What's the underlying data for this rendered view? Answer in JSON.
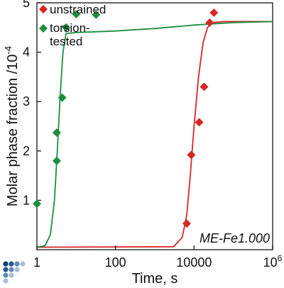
{
  "chart_data": {
    "type": "scatter",
    "title": "",
    "xlabel": "Time, s",
    "ylabel": "Molar phase fraction /10",
    "ylabel_exponent": "-4",
    "x_scale": "log",
    "xlim": [
      1,
      1000000
    ],
    "ylim": [
      0,
      5
    ],
    "x_ticks": [
      {
        "value": 1,
        "label": "1"
      },
      {
        "value": 100,
        "label": "100"
      },
      {
        "value": 10000,
        "label": "10000"
      },
      {
        "value": 1000000,
        "label": "10",
        "exponent": "6"
      }
    ],
    "y_ticks": [
      {
        "value": 1,
        "label": "1"
      },
      {
        "value": 2,
        "label": "2"
      },
      {
        "value": 3,
        "label": "3"
      },
      {
        "value": 4,
        "label": "4"
      },
      {
        "value": 5,
        "label": "5"
      }
    ],
    "legend_position": "top-left",
    "grid": false,
    "annotation": "ME-Fe1.000",
    "series": [
      {
        "name": "unstrained",
        "color": "#d62728",
        "marker": "diamond",
        "points": [
          {
            "x": 6500,
            "y": 0.53
          },
          {
            "x": 8500,
            "y": 1.92
          },
          {
            "x": 13500,
            "y": 2.58
          },
          {
            "x": 18000,
            "y": 3.3
          },
          {
            "x": 25000,
            "y": 4.6
          },
          {
            "x": 32000,
            "y": 4.8
          }
        ],
        "fit_curve": [
          {
            "x": 1,
            "y": 0.05
          },
          {
            "x": 3000,
            "y": 0.06
          },
          {
            "x": 5000,
            "y": 0.25
          },
          {
            "x": 6500,
            "y": 0.7
          },
          {
            "x": 8000,
            "y": 1.5
          },
          {
            "x": 10000,
            "y": 2.5
          },
          {
            "x": 13000,
            "y": 3.5
          },
          {
            "x": 17000,
            "y": 4.2
          },
          {
            "x": 22000,
            "y": 4.5
          },
          {
            "x": 30000,
            "y": 4.6
          },
          {
            "x": 60000,
            "y": 4.62
          },
          {
            "x": 1000000,
            "y": 4.62
          }
        ]
      },
      {
        "name": "torsion-tested",
        "color": "#1e8e3e",
        "marker": "diamond",
        "points": [
          {
            "x": 1,
            "y": 0.93
          },
          {
            "x": 3.2,
            "y": 1.8
          },
          {
            "x": 3.2,
            "y": 2.37
          },
          {
            "x": 4.4,
            "y": 3.08
          },
          {
            "x": 5.5,
            "y": 4.5
          },
          {
            "x": 10,
            "y": 4.77
          },
          {
            "x": 32,
            "y": 4.76
          }
        ],
        "fit_curve": [
          {
            "x": 1,
            "y": 0.05
          },
          {
            "x": 1.6,
            "y": 0.08
          },
          {
            "x": 2.2,
            "y": 0.3
          },
          {
            "x": 2.8,
            "y": 1.0
          },
          {
            "x": 3.3,
            "y": 2.0
          },
          {
            "x": 3.9,
            "y": 3.1
          },
          {
            "x": 4.6,
            "y": 4.0
          },
          {
            "x": 5.5,
            "y": 4.38
          },
          {
            "x": 10,
            "y": 4.4
          },
          {
            "x": 100,
            "y": 4.43
          },
          {
            "x": 1000,
            "y": 4.48
          },
          {
            "x": 10000,
            "y": 4.55
          },
          {
            "x": 100000,
            "y": 4.6
          },
          {
            "x": 1000000,
            "y": 4.62
          }
        ]
      }
    ]
  }
}
